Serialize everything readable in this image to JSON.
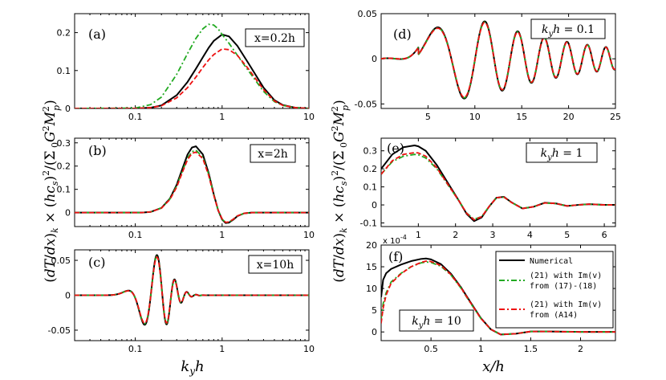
{
  "chart_data": [
    {
      "id": "a",
      "panel_label": "(a)",
      "annotation": "x=0.2h",
      "type": "line",
      "xscale": "log",
      "xlim": [
        0.02,
        10
      ],
      "ylim": [
        0,
        0.25
      ],
      "xticks": [
        "0.1",
        "1",
        "10"
      ],
      "yticks": [
        "0",
        "0.1",
        "0.2"
      ],
      "series": [
        {
          "name": "Numerical",
          "style": "solid",
          "color": "#000000",
          "x": [
            0.02,
            0.1,
            0.15,
            0.2,
            0.3,
            0.4,
            0.5,
            0.6,
            0.7,
            0.8,
            1.0,
            1.2,
            1.5,
            2,
            3,
            4,
            5,
            7,
            10
          ],
          "y": [
            0,
            0,
            0.002,
            0.008,
            0.035,
            0.07,
            0.105,
            0.135,
            0.16,
            0.178,
            0.195,
            0.19,
            0.165,
            0.12,
            0.055,
            0.022,
            0.009,
            0.002,
            0
          ]
        },
        {
          "name": "(21) with Im(v) from (17)-(18)",
          "style": "dashdot",
          "color": "#22aa22",
          "x": [
            0.02,
            0.1,
            0.15,
            0.2,
            0.3,
            0.4,
            0.5,
            0.6,
            0.7,
            0.8,
            0.9,
            1.0,
            1.2,
            1.5,
            2,
            3,
            4,
            5,
            7,
            10
          ],
          "y": [
            0,
            0.001,
            0.01,
            0.03,
            0.09,
            0.145,
            0.185,
            0.21,
            0.222,
            0.22,
            0.21,
            0.195,
            0.172,
            0.14,
            0.1,
            0.045,
            0.018,
            0.008,
            0.002,
            0
          ]
        },
        {
          "name": "(21) with Im(v) from (A14)",
          "style": "dashed",
          "color": "#ee1111",
          "x": [
            0.02,
            0.1,
            0.15,
            0.2,
            0.3,
            0.4,
            0.5,
            0.6,
            0.7,
            0.8,
            1.0,
            1.2,
            1.5,
            2,
            3,
            4,
            5,
            7,
            10
          ],
          "y": [
            0,
            0,
            0.002,
            0.007,
            0.028,
            0.055,
            0.083,
            0.108,
            0.128,
            0.142,
            0.157,
            0.155,
            0.14,
            0.105,
            0.05,
            0.02,
            0.008,
            0.002,
            0
          ]
        }
      ]
    },
    {
      "id": "b",
      "panel_label": "(b)",
      "annotation": "x=2h",
      "type": "line",
      "xscale": "log",
      "xlim": [
        0.02,
        10
      ],
      "ylim": [
        -0.06,
        0.32
      ],
      "xticks": [
        "0.1",
        "1",
        "10"
      ],
      "yticks": [
        "0",
        "0.1",
        "0.2",
        "0.3"
      ],
      "series": [
        {
          "name": "Numerical",
          "style": "solid",
          "color": "#000000",
          "x": [
            0.02,
            0.12,
            0.15,
            0.2,
            0.25,
            0.3,
            0.35,
            0.4,
            0.45,
            0.5,
            0.6,
            0.7,
            0.8,
            0.9,
            1.0,
            1.1,
            1.2,
            1.35,
            1.5,
            1.8,
            2.2,
            3,
            10
          ],
          "y": [
            0,
            0,
            0.003,
            0.02,
            0.06,
            0.12,
            0.19,
            0.25,
            0.28,
            0.285,
            0.25,
            0.17,
            0.08,
            0.01,
            -0.03,
            -0.045,
            -0.043,
            -0.03,
            -0.015,
            -0.003,
            0,
            0,
            0
          ]
        },
        {
          "name": "(21) with Im(v) from (17)-(18)",
          "style": "dashdot",
          "color": "#22aa22",
          "x": [
            0.02,
            0.12,
            0.15,
            0.2,
            0.25,
            0.3,
            0.35,
            0.4,
            0.45,
            0.5,
            0.6,
            0.7,
            0.8,
            0.9,
            1.0,
            1.1,
            1.2,
            1.35,
            1.5,
            1.8,
            2.2,
            3,
            10
          ],
          "y": [
            0,
            0,
            0.003,
            0.02,
            0.058,
            0.115,
            0.18,
            0.235,
            0.262,
            0.268,
            0.238,
            0.165,
            0.078,
            0.01,
            -0.028,
            -0.043,
            -0.041,
            -0.028,
            -0.014,
            -0.003,
            0,
            0,
            0
          ]
        },
        {
          "name": "(21) with Im(v) from (A14)",
          "style": "dashed",
          "color": "#ee1111",
          "x": [
            0.02,
            0.12,
            0.15,
            0.2,
            0.25,
            0.3,
            0.35,
            0.4,
            0.45,
            0.5,
            0.6,
            0.7,
            0.8,
            0.9,
            1.0,
            1.1,
            1.2,
            1.35,
            1.5,
            1.8,
            2.2,
            3,
            10
          ],
          "y": [
            0,
            0,
            0.003,
            0.019,
            0.056,
            0.11,
            0.175,
            0.228,
            0.255,
            0.26,
            0.232,
            0.16,
            0.075,
            0.01,
            -0.027,
            -0.042,
            -0.04,
            -0.028,
            -0.014,
            -0.003,
            0,
            0,
            0
          ]
        }
      ]
    },
    {
      "id": "c",
      "panel_label": "(c)",
      "annotation": "x=10h",
      "type": "line",
      "xscale": "log",
      "xlim": [
        0.02,
        10
      ],
      "ylim": [
        -0.065,
        0.065
      ],
      "xticks": [
        "0.1",
        "1",
        "10"
      ],
      "yticks": [
        "-0.05",
        "0",
        "0.05"
      ],
      "series": [
        {
          "name": "Numerical",
          "style": "solid",
          "color": "#000000",
          "generator": {
            "kind": "chirp",
            "start": 0.045,
            "end": 0.85,
            "center": 0.17,
            "width_log": 0.55,
            "amplitude": 0.058,
            "phase_scale": 58
          }
        },
        {
          "name": "(21) with Im(v) from (17)-(18)",
          "style": "dashdot",
          "color": "#22aa22",
          "generator": {
            "kind": "chirp",
            "start": 0.045,
            "end": 0.85,
            "center": 0.17,
            "width_log": 0.55,
            "amplitude": 0.056,
            "phase_scale": 58
          }
        },
        {
          "name": "(21) with Im(v) from (A14)",
          "style": "dashed",
          "color": "#ee1111",
          "generator": {
            "kind": "chirp",
            "start": 0.045,
            "end": 0.85,
            "center": 0.17,
            "width_log": 0.55,
            "amplitude": 0.055,
            "phase_scale": 58
          }
        }
      ]
    },
    {
      "id": "d",
      "panel_label": "(d)",
      "annotation": "k_y h = 0.1",
      "type": "line",
      "xscale": "linear",
      "xlim": [
        0,
        25
      ],
      "ylim": [
        -0.055,
        0.05
      ],
      "xticks": [
        "5",
        "10",
        "15",
        "20",
        "25"
      ],
      "yticks": [
        "-0.05",
        "0",
        "0.05"
      ],
      "series": [
        {
          "name": "Numerical",
          "style": "solid",
          "color": "#000000",
          "generator": {
            "kind": "osc_d",
            "amplitude": 1.0
          }
        },
        {
          "name": "(21) with Im(v) from (17)-(18)",
          "style": "dashdot",
          "color": "#22aa22",
          "generator": {
            "kind": "osc_d",
            "amplitude": 0.98
          }
        },
        {
          "name": "(21) with Im(v) from (A14)",
          "style": "dashed",
          "color": "#ee1111",
          "generator": {
            "kind": "osc_d",
            "amplitude": 0.97
          }
        }
      ]
    },
    {
      "id": "e",
      "panel_label": "(e)",
      "annotation": "k_y h = 1",
      "type": "line",
      "xscale": "linear",
      "xlim": [
        0,
        6.3
      ],
      "ylim": [
        -0.12,
        0.37
      ],
      "xticks": [
        "1",
        "2",
        "3",
        "4",
        "5",
        "6"
      ],
      "yticks": [
        "-0.1",
        "0",
        "0.1",
        "0.2",
        "0.3"
      ],
      "series": [
        {
          "name": "Numerical",
          "style": "solid",
          "color": "#000000",
          "x": [
            0,
            0.3,
            0.6,
            0.9,
            1.0,
            1.2,
            1.5,
            1.8,
            2.1,
            2.3,
            2.5,
            2.7,
            2.9,
            3.1,
            3.3,
            3.5,
            3.8,
            4.1,
            4.4,
            4.7,
            5.0,
            5.3,
            5.6,
            6.0,
            6.3
          ],
          "y": [
            0.2,
            0.28,
            0.32,
            0.33,
            0.325,
            0.3,
            0.22,
            0.12,
            0.02,
            -0.05,
            -0.09,
            -0.07,
            -0.01,
            0.04,
            0.045,
            0.015,
            -0.02,
            -0.01,
            0.012,
            0.008,
            -0.006,
            0.0,
            0.004,
            0.0,
            0.0
          ]
        },
        {
          "name": "(21) with Im(v) from (17)-(18)",
          "style": "dashdot",
          "color": "#22aa22",
          "x": [
            0,
            0.3,
            0.6,
            0.9,
            1.0,
            1.2,
            1.5,
            1.8,
            2.1,
            2.3,
            2.5,
            2.7,
            2.9,
            3.1,
            3.3,
            3.5,
            3.8,
            4.1,
            4.4,
            4.7,
            5.0,
            5.3,
            5.6,
            6.0,
            6.3
          ],
          "y": [
            0.17,
            0.24,
            0.27,
            0.28,
            0.278,
            0.26,
            0.2,
            0.11,
            0.02,
            -0.045,
            -0.08,
            -0.065,
            -0.01,
            0.038,
            0.043,
            0.014,
            -0.019,
            -0.01,
            0.011,
            0.007,
            -0.006,
            0.0,
            0.004,
            0.0,
            0.0
          ]
        },
        {
          "name": "(21) with Im(v) from (A14)",
          "style": "dashed",
          "color": "#ee1111",
          "x": [
            0,
            0.3,
            0.6,
            0.9,
            1.0,
            1.2,
            1.5,
            1.8,
            2.1,
            2.3,
            2.5,
            2.7,
            2.9,
            3.1,
            3.3,
            3.5,
            3.8,
            4.1,
            4.4,
            4.7,
            5.0,
            5.3,
            5.6,
            6.0,
            6.3
          ],
          "y": [
            0.17,
            0.245,
            0.28,
            0.29,
            0.288,
            0.27,
            0.205,
            0.112,
            0.02,
            -0.047,
            -0.083,
            -0.066,
            -0.01,
            0.04,
            0.044,
            0.014,
            -0.02,
            -0.01,
            0.011,
            0.008,
            -0.006,
            0.0,
            0.004,
            0.0,
            0.0
          ]
        }
      ]
    },
    {
      "id": "f",
      "panel_label": "(f)",
      "annotation": "k_y h = 10",
      "multiplier": "x 10^-4",
      "type": "line",
      "xscale": "linear",
      "xlim": [
        0,
        2.35
      ],
      "ylim": [
        -2,
        20
      ],
      "xticks": [
        "0.5",
        "1",
        "1.5",
        "2"
      ],
      "yticks": [
        "0",
        "5",
        "10",
        "15",
        "20"
      ],
      "series": [
        {
          "name": "Numerical",
          "style": "solid",
          "color": "#000000",
          "x": [
            0,
            0.02,
            0.05,
            0.1,
            0.2,
            0.3,
            0.4,
            0.45,
            0.5,
            0.6,
            0.7,
            0.8,
            0.9,
            1.0,
            1.1,
            1.2,
            1.35,
            1.5,
            1.7,
            2.0,
            2.35
          ],
          "y": [
            8,
            12,
            13.5,
            14.5,
            15.5,
            16.3,
            16.8,
            16.9,
            16.7,
            15.6,
            13.4,
            10.3,
            6.7,
            3.2,
            0.6,
            -0.6,
            -0.4,
            0.1,
            0.1,
            0,
            0
          ]
        },
        {
          "name": "(21) with Im(v) from (17)-(18)",
          "style": "dashdot",
          "color": "#22aa22",
          "x": [
            0,
            0.02,
            0.05,
            0.1,
            0.2,
            0.3,
            0.4,
            0.45,
            0.5,
            0.6,
            0.7,
            0.8,
            0.9,
            1.0,
            1.1,
            1.2,
            1.35,
            1.5,
            1.7,
            2.0,
            2.35
          ],
          "y": [
            3,
            6.5,
            9,
            11.5,
            13.5,
            15.0,
            15.9,
            16.1,
            16.0,
            15.1,
            13.1,
            10.1,
            6.5,
            3.1,
            0.6,
            -0.6,
            -0.4,
            0.1,
            0.1,
            0,
            0
          ]
        },
        {
          "name": "(21) with Im(v) from (A14)",
          "style": "dashed",
          "color": "#ee1111",
          "x": [
            0,
            0.02,
            0.05,
            0.1,
            0.2,
            0.3,
            0.4,
            0.45,
            0.5,
            0.6,
            0.7,
            0.8,
            0.9,
            1.0,
            1.1,
            1.2,
            1.35,
            1.5,
            1.7,
            2.0,
            2.35
          ],
          "y": [
            2,
            5.5,
            8.5,
            11.2,
            13.4,
            15.0,
            16.0,
            16.3,
            16.2,
            15.3,
            13.2,
            10.2,
            6.6,
            3.1,
            0.6,
            -0.6,
            -0.4,
            0.1,
            0.1,
            0,
            0
          ]
        }
      ]
    }
  ],
  "legend": {
    "numerical": "Numerical",
    "green_line1": "(21) with Im(v)",
    "green_line2": "from (17)-(18)",
    "red_line1": "(21) with Im(v)",
    "red_line2": "from (A14)"
  },
  "axis_labels": {
    "left_ylabel": "(dT/dx)_k × (hc_s)^2/(Σ_0 G^2 M_p^2)",
    "right_ylabel": "(dT/dx)_k × (hc_s)^2/(Σ_0 G^2 M_p^2)",
    "left_xlabel": "k_y h",
    "right_xlabel": "x/h"
  },
  "colors": {
    "black": "#000000",
    "green": "#22aa22",
    "red": "#ee1111"
  }
}
